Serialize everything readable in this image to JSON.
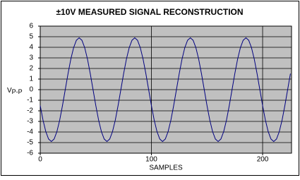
{
  "chart_data": {
    "type": "line",
    "title": "±10V MEASURED SIGNAL RECONSTRUCTION",
    "ylabel": "V",
    "ylabel_sub": "P-P",
    "xlabel": "SAMPLES",
    "xlim": [
      0,
      226
    ],
    "ylim": [
      -6,
      6
    ],
    "xticks": [
      0,
      100,
      200
    ],
    "yticks": [
      -6,
      -5,
      -4,
      -3,
      -2,
      -1,
      0,
      1,
      2,
      3,
      4,
      5,
      6
    ],
    "grid": true,
    "color": "#000080",
    "x": [
      0,
      2.5,
      5,
      7.5,
      10,
      12.5,
      15,
      17.5,
      20,
      22.5,
      25,
      27.5,
      30,
      32.5,
      35,
      37.5,
      40,
      42.5,
      45,
      47.5,
      50,
      52.5,
      55,
      57.5,
      60,
      62.5,
      65,
      67.5,
      70,
      72.5,
      75,
      77.5,
      80,
      82.5,
      85,
      87.5,
      90,
      92.5,
      95,
      97.5,
      100,
      102.5,
      105,
      107.5,
      110,
      112.5,
      115,
      117.5,
      120,
      122.5,
      125,
      127.5,
      130,
      132.5,
      135,
      137.5,
      140,
      142.5,
      145,
      147.5,
      150,
      152.5,
      155,
      157.5,
      160,
      162.5,
      165,
      167.5,
      170,
      172.5,
      175,
      177.5,
      180,
      182.5,
      185,
      187.5,
      190,
      192.5,
      195,
      197.5,
      200,
      202.5,
      205,
      207.5,
      210,
      212.5,
      215,
      217.5,
      220,
      222.5,
      225
    ],
    "values": [
      -1.51,
      -2.88,
      -3.96,
      -4.66,
      -4.9,
      -4.66,
      -3.96,
      -2.88,
      -1.51,
      0,
      1.51,
      2.88,
      3.96,
      4.66,
      4.9,
      4.66,
      3.96,
      2.88,
      1.51,
      0,
      -1.51,
      -2.88,
      -3.96,
      -4.66,
      -4.9,
      -4.66,
      -3.96,
      -2.88,
      -1.51,
      0,
      1.51,
      2.88,
      3.96,
      4.66,
      4.9,
      4.66,
      3.96,
      2.88,
      1.51,
      0,
      -1.51,
      -2.88,
      -3.96,
      -4.66,
      -4.9,
      -4.66,
      -3.96,
      -2.88,
      -1.51,
      0,
      1.51,
      2.88,
      3.96,
      4.66,
      4.9,
      4.66,
      3.96,
      2.88,
      1.51,
      0,
      -1.51,
      -2.88,
      -3.96,
      -4.66,
      -4.9,
      -4.66,
      -3.96,
      -2.88,
      -1.51,
      0,
      1.51,
      2.88,
      3.96,
      4.66,
      4.9,
      4.66,
      3.96,
      2.88,
      1.51,
      0,
      -1.51,
      -2.88,
      -3.96,
      -4.66,
      -4.9,
      -4.66,
      -3.96,
      -2.88,
      -1.51,
      0,
      1.51
    ]
  }
}
